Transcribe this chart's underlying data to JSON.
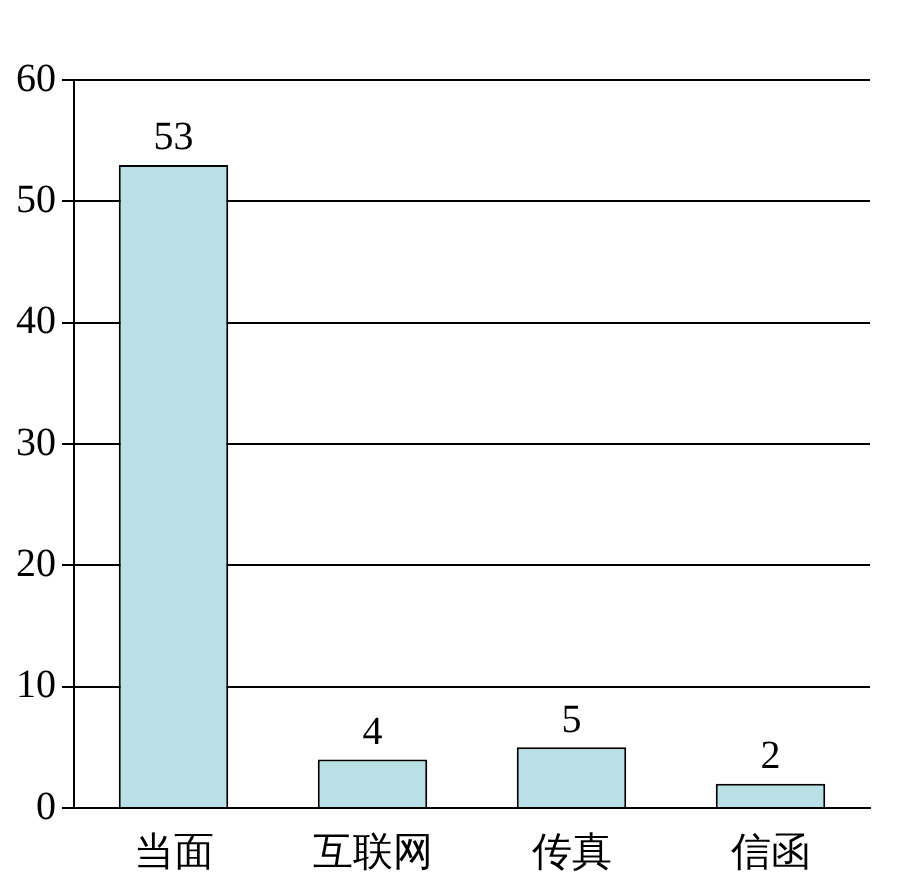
{
  "chart_data": {
    "type": "bar",
    "categories": [
      "当面",
      "互联网",
      "传真",
      "信函"
    ],
    "values": [
      53,
      4,
      5,
      2
    ],
    "color": "#b9e0e4",
    "ylim": [
      0,
      60
    ],
    "yticks": [
      0,
      10,
      20,
      30,
      40,
      50,
      60
    ],
    "grid": "y",
    "data_labels": true
  }
}
